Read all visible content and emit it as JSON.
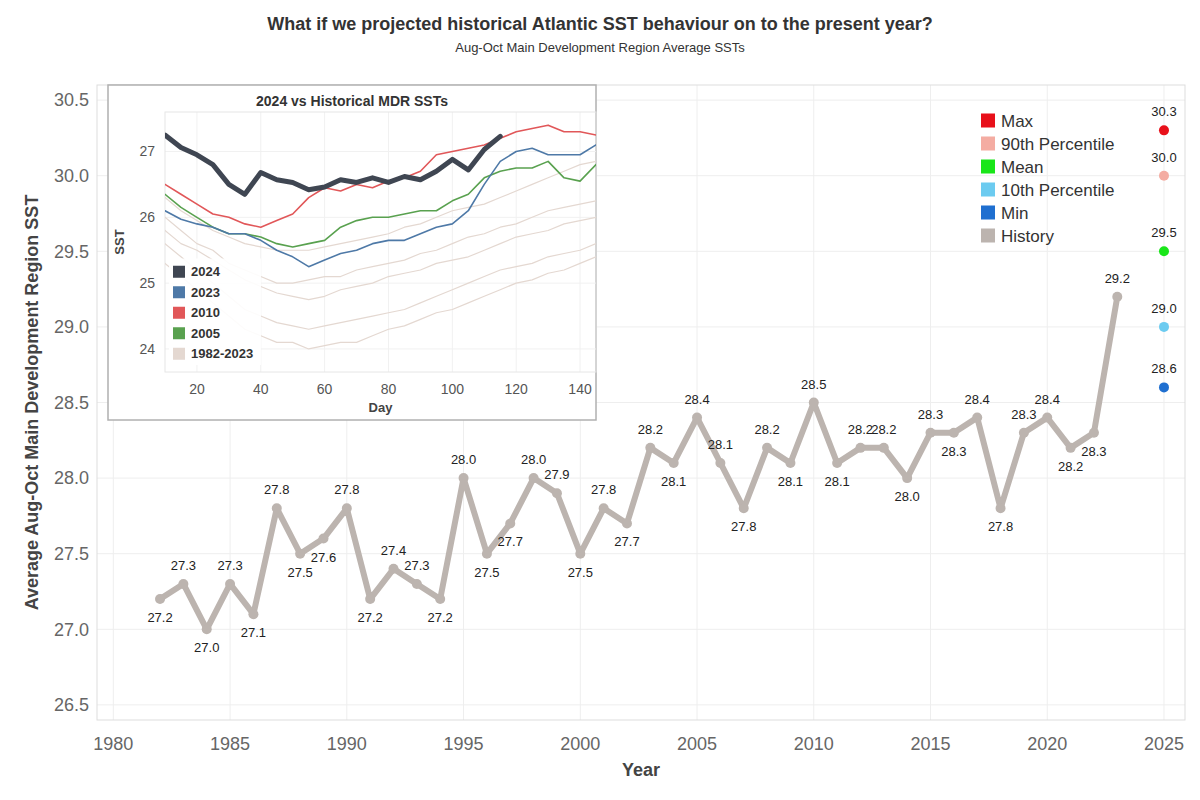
{
  "chart_data": [
    {
      "type": "line",
      "title": "What if we projected historical Atlantic SST behaviour on to the present year?",
      "subtitle": "Aug-Oct Main Development Region Average SSTs",
      "x_label": "Year",
      "y_label": "Average Aug-Oct Main Development Region SST",
      "xlim": [
        1979.3,
        2025.9
      ],
      "xticks": [
        1980,
        1985,
        1990,
        1995,
        2000,
        2005,
        2010,
        2015,
        2020,
        2025
      ],
      "ylim": [
        26.4,
        30.6
      ],
      "yticks": [
        {
          "value": 26.5,
          "label": "26.5"
        },
        {
          "value": 27,
          "label": "27.0"
        },
        {
          "value": 27.5,
          "label": "27.5"
        },
        {
          "value": 28,
          "label": "28.0"
        },
        {
          "value": 28.5,
          "label": "28.5"
        },
        {
          "value": 29,
          "label": "29.0"
        },
        {
          "value": 29.5,
          "label": "29.5"
        },
        {
          "value": 30,
          "label": "30.0"
        },
        {
          "value": 30.5,
          "label": "30.5"
        }
      ],
      "grid": true,
      "legend": "top-right",
      "data_labels": true,
      "series": [
        {
          "name": "Max",
          "type": "scatter",
          "marker": "circle",
          "color": "#e8101a",
          "x": [
            2025
          ],
          "values": [
            30.3
          ]
        },
        {
          "name": "90th Percentile",
          "type": "scatter",
          "marker": "circle",
          "color": "#f4aca2",
          "x": [
            2025
          ],
          "values": [
            30.0
          ],
          "value_labels": [
            "30.0"
          ]
        },
        {
          "name": "Mean",
          "type": "scatter",
          "marker": "circle",
          "color": "#19e619",
          "x": [
            2025
          ],
          "values": [
            29.5
          ]
        },
        {
          "name": "10th Percentile",
          "type": "scatter",
          "marker": "circle",
          "color": "#6ccbf0",
          "x": [
            2025
          ],
          "values": [
            29.0
          ],
          "value_labels": [
            "29.0"
          ]
        },
        {
          "name": "Min",
          "type": "scatter",
          "marker": "circle",
          "color": "#1f6fd0",
          "x": [
            2025
          ],
          "values": [
            28.6
          ]
        },
        {
          "name": "History",
          "type": "line",
          "marker": "circle",
          "color": "#bcb4af",
          "x": [
            1982,
            1983,
            1984,
            1985,
            1986,
            1987,
            1988,
            1989,
            1990,
            1991,
            1992,
            1993,
            1994,
            1995,
            1996,
            1997,
            1998,
            1999,
            2000,
            2001,
            2002,
            2003,
            2004,
            2005,
            2006,
            2007,
            2008,
            2009,
            2010,
            2011,
            2012,
            2013,
            2014,
            2015,
            2016,
            2017,
            2018,
            2019,
            2020,
            2021,
            2022,
            2023
          ],
          "values": [
            27.2,
            27.3,
            27.0,
            27.3,
            27.1,
            27.8,
            27.5,
            27.6,
            27.8,
            27.2,
            27.4,
            27.3,
            27.2,
            28.0,
            27.5,
            27.7,
            28.0,
            27.9,
            27.5,
            27.8,
            27.7,
            28.2,
            28.1,
            28.4,
            28.1,
            27.8,
            28.2,
            28.1,
            28.5,
            28.1,
            28.2,
            28.2,
            28.0,
            28.3,
            28.3,
            28.4,
            27.8,
            28.3,
            28.4,
            28.2,
            28.3,
            29.2
          ],
          "value_labels": [
            "27.2",
            "27.3",
            "27.0",
            "27.3",
            "27.1",
            "27.8",
            "27.5",
            "27.6",
            "27.8",
            "27.2",
            "27.4",
            "27.3",
            "27.2",
            "28.0",
            "27.5",
            "27.7",
            "28.0",
            "27.9",
            "27.5",
            "27.8",
            "27.7",
            "28.2",
            "28.1",
            "28.4",
            "28.1",
            "27.8",
            "28.2",
            "28.1",
            "28.5",
            "28.1",
            "28.2",
            "28.2",
            "28.0",
            "28.3",
            "28.3",
            "28.4",
            "27.8",
            "28.3",
            "28.4",
            "28.2",
            "28.3",
            "29.2"
          ]
        }
      ]
    },
    {
      "type": "line",
      "title": "2024 vs Historical MDR SSTs",
      "x_label": "Day",
      "y_label": "SST",
      "x": [
        10,
        15,
        20,
        25,
        30,
        35,
        40,
        45,
        50,
        55,
        60,
        65,
        70,
        75,
        80,
        85,
        90,
        95,
        100,
        105,
        110,
        115,
        120,
        125,
        130,
        135,
        140,
        145
      ],
      "xlim": [
        10,
        145
      ],
      "xticks": [
        20,
        40,
        60,
        80,
        100,
        120,
        140
      ],
      "ylim": [
        23.65,
        27.6
      ],
      "yticks": [
        24,
        25,
        26,
        27
      ],
      "grid": true,
      "legend": "bottom-left",
      "series": [
        {
          "name": "2024",
          "color": "#3f4652",
          "values": [
            27.25,
            27.06,
            26.95,
            26.8,
            26.5,
            26.35,
            26.68,
            26.57,
            26.53,
            26.42,
            26.46,
            26.57,
            26.53,
            26.6,
            26.53,
            26.62,
            26.57,
            26.7,
            26.88,
            26.72,
            27.03,
            27.23,
            null,
            null,
            null,
            null,
            null,
            null
          ]
        },
        {
          "name": "2023",
          "color": "#4e79a7",
          "values": [
            26.1,
            25.97,
            25.9,
            25.85,
            25.75,
            25.75,
            25.65,
            25.5,
            25.4,
            25.25,
            25.35,
            25.45,
            25.5,
            25.6,
            25.65,
            25.65,
            25.75,
            25.85,
            25.9,
            26.1,
            26.5,
            26.85,
            27.0,
            27.05,
            26.95,
            26.95,
            26.95,
            27.1
          ]
        },
        {
          "name": "2010",
          "color": "#e15759",
          "values": [
            26.5,
            26.35,
            26.2,
            26.05,
            26.0,
            25.9,
            25.85,
            25.95,
            26.05,
            26.3,
            26.45,
            26.4,
            26.5,
            26.45,
            26.55,
            26.6,
            26.7,
            26.95,
            27.0,
            27.05,
            27.1,
            27.2,
            27.3,
            27.35,
            27.4,
            27.3,
            27.3,
            27.25
          ]
        },
        {
          "name": "2005",
          "color": "#59a14f",
          "values": [
            26.35,
            26.15,
            26.0,
            25.85,
            25.75,
            25.75,
            25.7,
            25.6,
            25.55,
            25.6,
            25.65,
            25.85,
            25.95,
            26.0,
            26.0,
            26.05,
            26.1,
            26.1,
            26.25,
            26.35,
            26.6,
            26.7,
            26.75,
            26.75,
            26.85,
            26.6,
            26.55,
            26.8
          ]
        },
        {
          "name": "1982-2023",
          "color": "#e4d8d1",
          "values": [
            26.3,
            26.1,
            25.95,
            25.8,
            25.7,
            25.6,
            25.55,
            25.5,
            25.5,
            25.5,
            25.55,
            25.6,
            25.65,
            25.7,
            25.75,
            25.85,
            25.9,
            26.0,
            26.1,
            26.15,
            26.2,
            26.3,
            26.4,
            26.5,
            26.6,
            26.7,
            26.8,
            26.85
          ]
        },
        {
          "name": "1982-2023",
          "color": "#e4d8d1",
          "values": [
            26.0,
            25.8,
            25.6,
            25.5,
            25.3,
            25.2,
            25.1,
            25.0,
            25.0,
            25.05,
            25.1,
            25.1,
            25.2,
            25.25,
            25.3,
            25.35,
            25.45,
            25.5,
            25.6,
            25.7,
            25.75,
            25.85,
            25.9,
            26.0,
            26.1,
            26.15,
            26.2,
            26.25
          ]
        },
        {
          "name": "1982-2023",
          "color": "#e4d8d1",
          "values": [
            25.8,
            25.6,
            25.5,
            25.35,
            25.2,
            25.05,
            24.95,
            24.85,
            24.8,
            24.75,
            24.8,
            24.9,
            24.95,
            25.0,
            25.1,
            25.15,
            25.2,
            25.3,
            25.35,
            25.4,
            25.5,
            25.6,
            25.7,
            25.75,
            25.8,
            25.9,
            25.95,
            26.0
          ]
        },
        {
          "name": "1982-2023",
          "color": "#e4d8d1",
          "values": [
            25.6,
            25.4,
            25.2,
            25.0,
            24.8,
            24.6,
            24.5,
            24.4,
            24.35,
            24.3,
            24.35,
            24.4,
            24.45,
            24.5,
            24.55,
            24.6,
            24.7,
            24.8,
            24.9,
            25.0,
            25.1,
            25.2,
            25.25,
            25.3,
            25.4,
            25.45,
            25.5,
            25.6
          ]
        },
        {
          "name": "1982-2023",
          "color": "#e4d8d1",
          "values": [
            25.3,
            25.1,
            24.9,
            24.7,
            24.5,
            24.3,
            24.2,
            24.1,
            24.1,
            24.0,
            24.05,
            24.1,
            24.1,
            24.2,
            24.3,
            24.35,
            24.45,
            24.55,
            24.6,
            24.7,
            24.8,
            24.9,
            25.0,
            25.05,
            25.15,
            25.2,
            25.3,
            25.4
          ]
        }
      ]
    }
  ]
}
